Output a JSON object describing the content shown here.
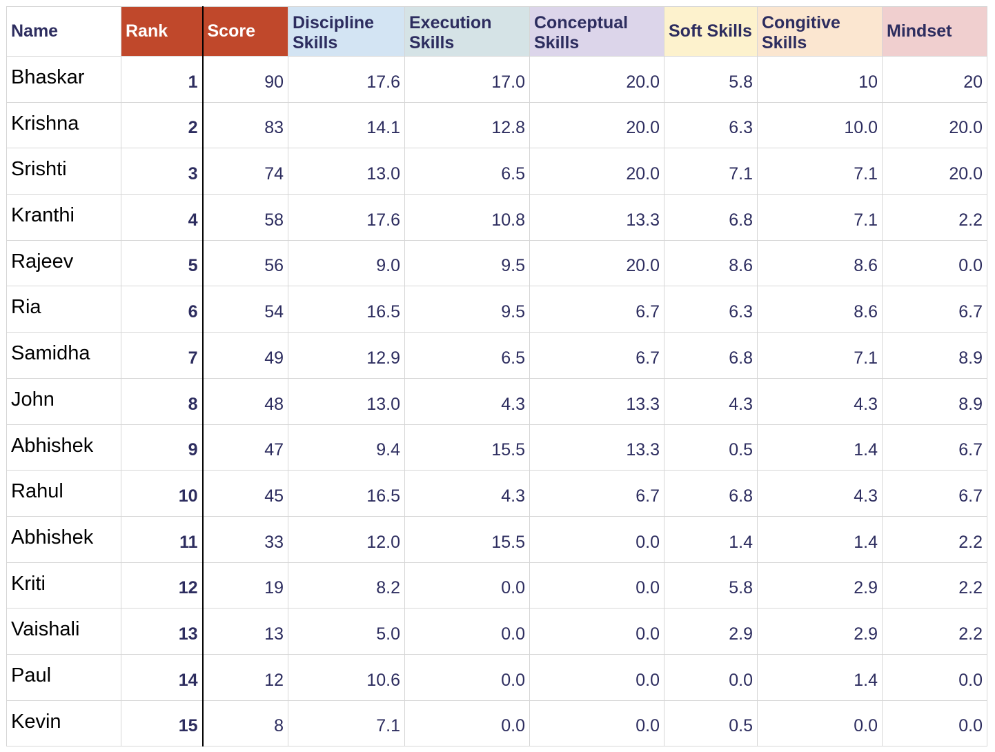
{
  "chart_data": {
    "type": "table",
    "columns": [
      {
        "key": "name",
        "label": "Name",
        "color": "#ffffff"
      },
      {
        "key": "rank",
        "label": "Rank",
        "color": "#c0482b"
      },
      {
        "key": "score",
        "label": "Score",
        "color": "#c0482b"
      },
      {
        "key": "discipline",
        "label": "Discipline Skills",
        "color": "#d3e4f3"
      },
      {
        "key": "execution",
        "label": "Execution Skills",
        "color": "#d5e3e6"
      },
      {
        "key": "conceptual",
        "label": "Conceptual Skills",
        "color": "#dcd5ea"
      },
      {
        "key": "soft",
        "label": "Soft Skills",
        "color": "#fdf2cd"
      },
      {
        "key": "cognitive",
        "label": "Congitive Skills",
        "color": "#fbe6d0"
      },
      {
        "key": "mindset",
        "label": "Mindset",
        "color": "#f0cfcf"
      }
    ],
    "rows": [
      [
        "Bhaskar",
        "1",
        "90",
        "17.6",
        "17.0",
        "20.0",
        "5.8",
        "10",
        "20"
      ],
      [
        "Krishna",
        "2",
        "83",
        "14.1",
        "12.8",
        "20.0",
        "6.3",
        "10.0",
        "20.0"
      ],
      [
        "Srishti",
        "3",
        "74",
        "13.0",
        "6.5",
        "20.0",
        "7.1",
        "7.1",
        "20.0"
      ],
      [
        "Kranthi",
        "4",
        "58",
        "17.6",
        "10.8",
        "13.3",
        "6.8",
        "7.1",
        "2.2"
      ],
      [
        "Rajeev",
        "5",
        "56",
        "9.0",
        "9.5",
        "20.0",
        "8.6",
        "8.6",
        "0.0"
      ],
      [
        "Ria",
        "6",
        "54",
        "16.5",
        "9.5",
        "6.7",
        "6.3",
        "8.6",
        "6.7"
      ],
      [
        "Samidha",
        "7",
        "49",
        "12.9",
        "6.5",
        "6.7",
        "6.8",
        "7.1",
        "8.9"
      ],
      [
        "John",
        "8",
        "48",
        "13.0",
        "4.3",
        "13.3",
        "4.3",
        "4.3",
        "8.9"
      ],
      [
        "Abhishek",
        "9",
        "47",
        "9.4",
        "15.5",
        "13.3",
        "0.5",
        "1.4",
        "6.7"
      ],
      [
        "Rahul",
        "10",
        "45",
        "16.5",
        "4.3",
        "6.7",
        "6.8",
        "4.3",
        "6.7"
      ],
      [
        "Abhishek",
        "11",
        "33",
        "12.0",
        "15.5",
        "0.0",
        "1.4",
        "1.4",
        "2.2"
      ],
      [
        "Kriti",
        "12",
        "19",
        "8.2",
        "0.0",
        "0.0",
        "5.8",
        "2.9",
        "2.2"
      ],
      [
        "Vaishali",
        "13",
        "13",
        "5.0",
        "0.0",
        "0.0",
        "2.9",
        "2.9",
        "2.2"
      ],
      [
        "Paul",
        "14",
        "12",
        "10.6",
        "0.0",
        "0.0",
        "0.0",
        "1.4",
        "0.0"
      ],
      [
        "Kevin",
        "15",
        "8",
        "7.1",
        "0.0",
        "0.0",
        "0.5",
        "0.0",
        "0.0"
      ]
    ]
  }
}
